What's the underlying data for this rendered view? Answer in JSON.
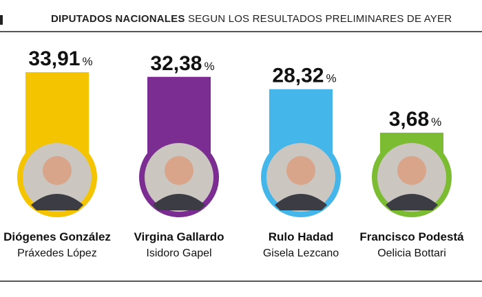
{
  "header": {
    "title_bold": "DIPUTADOS NACIONALES",
    "title_rest": "SEGUN LOS RESULTADOS PRELIMINARES DE AYER"
  },
  "chart_data": {
    "type": "bar",
    "unit": "%",
    "categories": [
      "Diógenes González",
      "Virgina Gallardo",
      "Rulo Hadad",
      "Francisco Podestá"
    ],
    "values": [
      33.91,
      32.38,
      28.32,
      3.68
    ],
    "value_labels": [
      "33,91",
      "32,38",
      "28,32",
      "3,68"
    ],
    "secondary_labels": [
      "Práxedes López",
      "Isidoro Gapel",
      "Gisela Lezcano",
      "Oelicia Bottari"
    ],
    "colors": [
      "#f5c400",
      "#7b2d91",
      "#45b6ea",
      "#7cbc33"
    ],
    "icons": [
      "portrait-photo",
      "portrait-photo",
      "portrait-photo",
      "portrait-photo"
    ],
    "grid": false,
    "legend": "none"
  }
}
